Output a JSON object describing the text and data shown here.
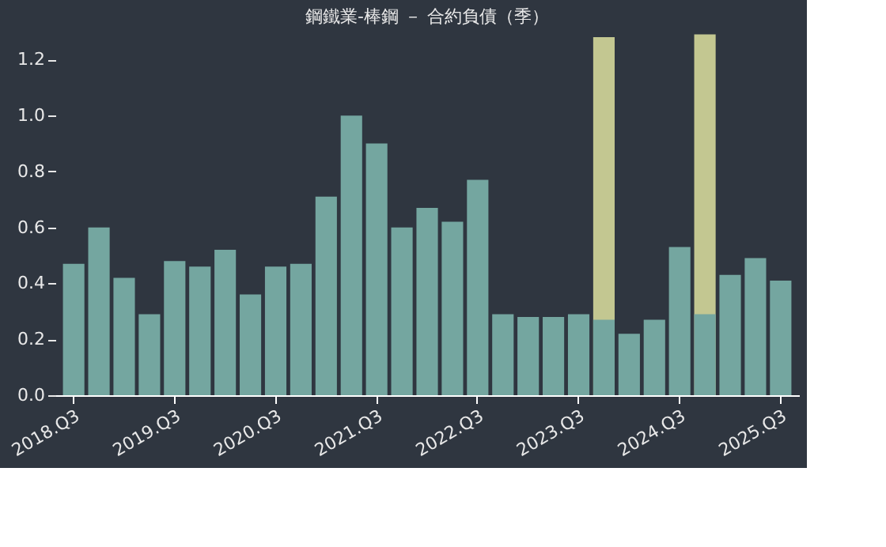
{
  "chart_data": {
    "type": "bar",
    "title": "鋼鐵業-棒鋼 － 合約負債（季）",
    "categories": [
      "2018.Q3",
      null,
      null,
      null,
      "2019.Q3",
      null,
      null,
      null,
      "2020.Q3",
      null,
      null,
      null,
      "2021.Q3",
      null,
      null,
      null,
      "2022.Q3",
      null,
      null,
      null,
      "2023.Q3",
      null,
      null,
      null,
      "2024.Q3",
      null,
      null,
      null,
      "2025.Q3"
    ],
    "series": [
      {
        "color": "#c3c791",
        "values": [
          null,
          null,
          null,
          null,
          null,
          null,
          null,
          null,
          null,
          null,
          null,
          null,
          null,
          null,
          null,
          null,
          null,
          null,
          null,
          null,
          null,
          1.28,
          null,
          null,
          null,
          1.29,
          null,
          null,
          null
        ]
      },
      {
        "color": "#74a6a0",
        "values": [
          0.47,
          0.6,
          0.42,
          0.29,
          0.48,
          0.46,
          0.52,
          0.36,
          0.46,
          0.47,
          0.71,
          1.0,
          0.9,
          0.6,
          0.67,
          0.62,
          0.77,
          0.29,
          0.28,
          0.28,
          0.29,
          0.27,
          0.22,
          0.27,
          0.53,
          0.29,
          0.43,
          0.49,
          0.41
        ]
      }
    ],
    "ylim": [
      0,
      1.3
    ],
    "yticks": [
      {
        "value": 0,
        "label": "0.0"
      },
      0.2,
      0.4,
      0.6,
      0.8,
      {
        "value": 1,
        "label": "1.0"
      },
      1.2
    ]
  }
}
